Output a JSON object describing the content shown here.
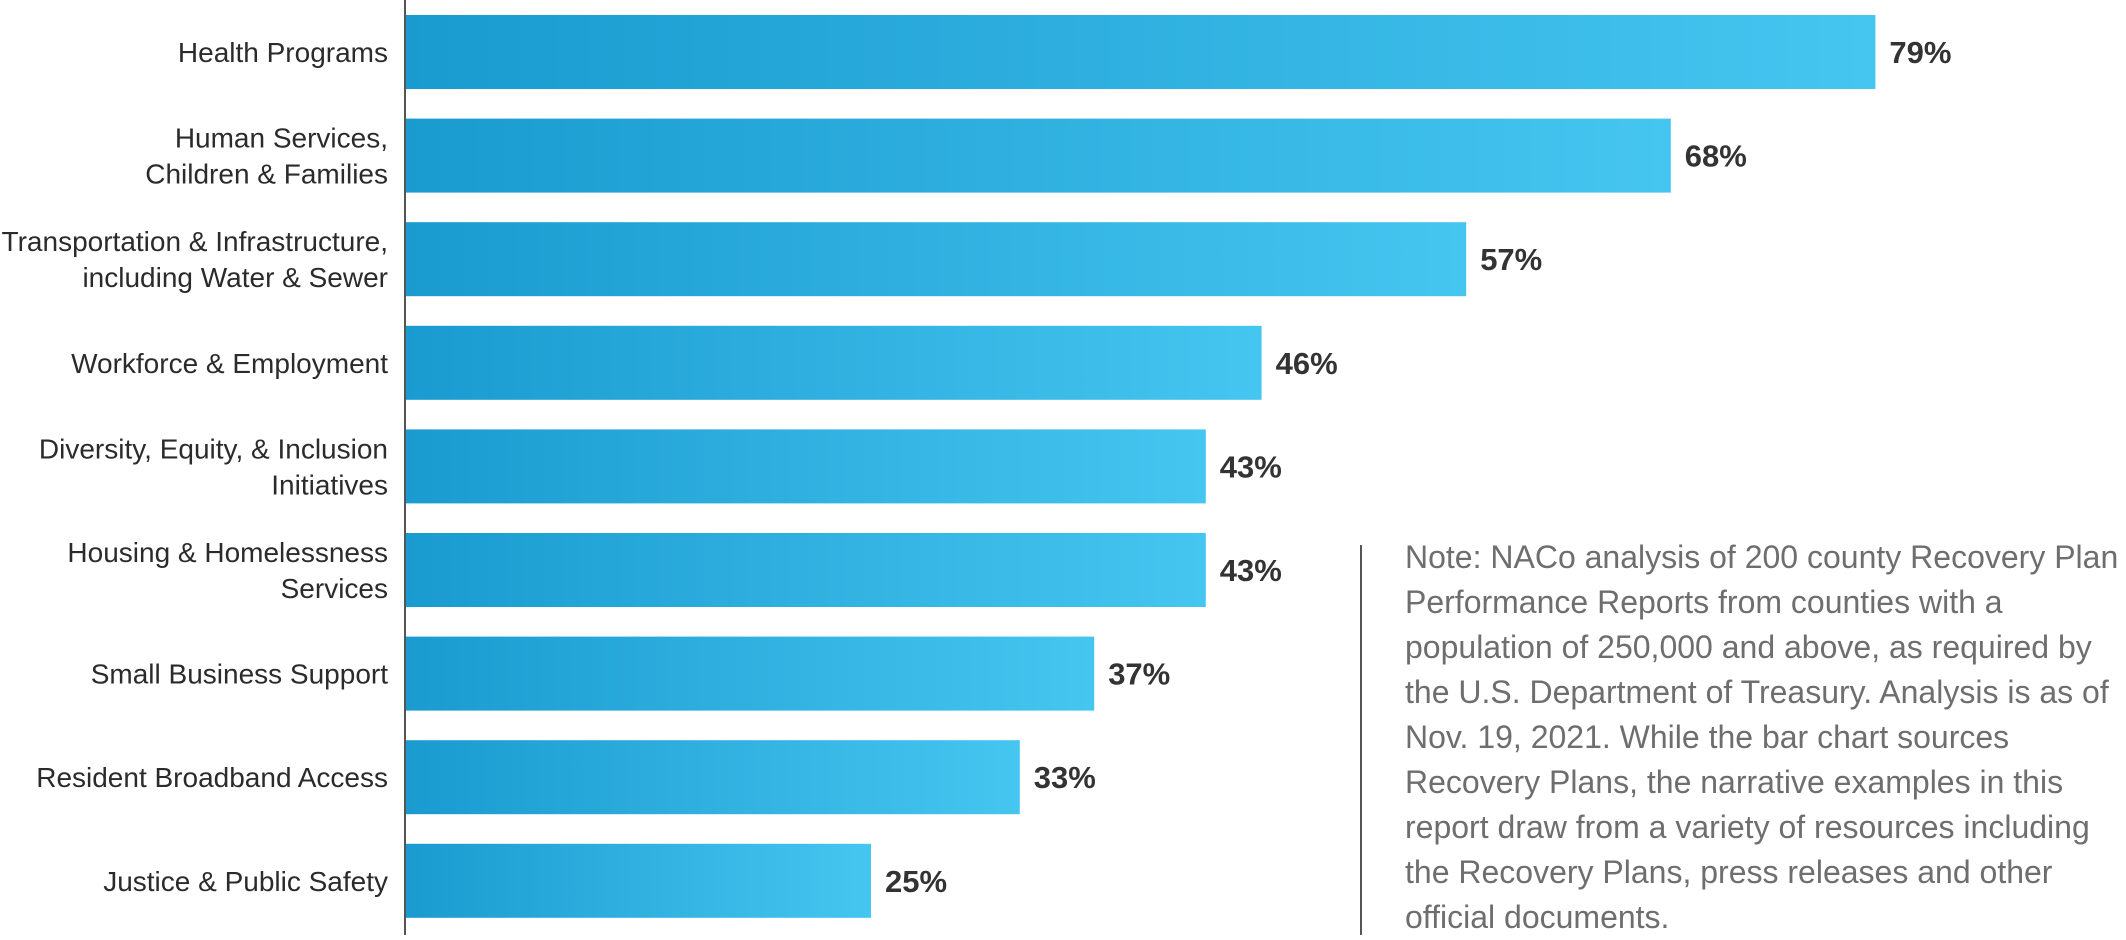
{
  "chart_data": {
    "type": "bar",
    "orientation": "horizontal",
    "categories": [
      "Health Programs",
      "Human Services,\nChildren & Families",
      "Transportation & Infrastructure,\nincluding Water & Sewer",
      "Workforce & Employment",
      "Diversity, Equity, & Inclusion\nInitiatives",
      "Housing & Homelessness\nServices",
      "Small Business Support",
      "Resident Broadband Access",
      "Justice & Public Safety"
    ],
    "values": [
      79,
      68,
      57,
      46,
      43,
      43,
      37,
      33,
      25
    ],
    "value_labels": [
      "79%",
      "68%",
      "57%",
      "46%",
      "43%",
      "43%",
      "37%",
      "33%",
      "25%"
    ],
    "unit": "%",
    "xlim": [
      0,
      100
    ],
    "grid": false,
    "legend": "none",
    "colors": {
      "bar_start": "#1a9bd0",
      "bar_end": "#45c6f0",
      "axis": "#555555"
    }
  },
  "note": {
    "text": "Note: NACo analysis of 200 county Recovery Plan Performance Reports from counties with a population of 250,000 and above, as required by the U.S. Department of Treasury. Analysis is as of Nov. 19, 2021. While the bar chart sources Recovery Plans, the narrative examples in this report draw from a variety of resources including the Recovery Plans, press releases and other official documents."
  }
}
